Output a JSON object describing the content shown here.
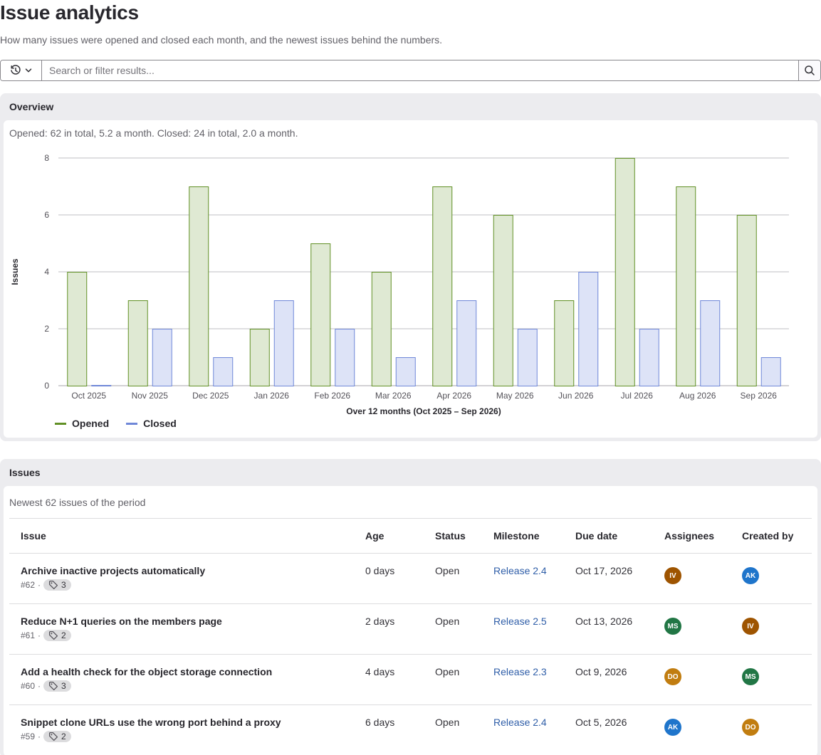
{
  "page": {
    "title": "Issue analytics",
    "description": "How many issues were opened and closed each month, and the newest issues behind the numbers."
  },
  "filter": {
    "placeholder": "Search or filter results...",
    "history_icon": "history-icon",
    "search_icon": "search-icon"
  },
  "overview": {
    "heading": "Overview",
    "summary": "Opened: 62 in total, 5.2 a month. Closed: 24 in total, 2.0 a month."
  },
  "chart_data": {
    "type": "bar",
    "categories": [
      "Oct 2025",
      "Nov 2025",
      "Dec 2025",
      "Jan 2026",
      "Feb 2026",
      "Mar 2026",
      "Apr 2026",
      "May 2026",
      "Jun 2026",
      "Jul 2026",
      "Aug 2026",
      "Sep 2026"
    ],
    "series": [
      {
        "name": "Opened",
        "values": [
          4,
          3,
          7,
          2,
          5,
          4,
          7,
          6,
          3,
          8,
          7,
          6
        ],
        "fill": "#dfe9d3",
        "stroke": "#619025"
      },
      {
        "name": "Closed",
        "values": [
          0,
          2,
          1,
          3,
          2,
          1,
          3,
          2,
          4,
          2,
          3,
          1
        ],
        "fill": "#dde3f7",
        "stroke": "#6f87d8"
      }
    ],
    "xlabel": "Over 12 months (Oct 2025 – Sep 2026)",
    "ylabel": "Issues",
    "ylim": [
      0,
      8
    ],
    "yticks": [
      0,
      2,
      4,
      6,
      8
    ],
    "grid": true,
    "legend_position": "bottom-left"
  },
  "issues": {
    "heading": "Issues",
    "caption": "Newest 62 issues of the period",
    "columns": [
      "Issue",
      "Age",
      "Status",
      "Milestone",
      "Due date",
      "Assignees",
      "Created by"
    ],
    "rows": [
      {
        "title": "Archive inactive projects automatically",
        "number": "#62",
        "labels": "3",
        "age": "0 days",
        "status": "Open",
        "milestone": "Release 2.4",
        "due": "Oct 17, 2026",
        "assignee": {
          "initials": "IV",
          "color": "#9e5400"
        },
        "creator": {
          "initials": "AK",
          "color": "#1f75cb"
        }
      },
      {
        "title": "Reduce N+1 queries on the members page",
        "number": "#61",
        "labels": "2",
        "age": "2 days",
        "status": "Open",
        "milestone": "Release 2.5",
        "due": "Oct 13, 2026",
        "assignee": {
          "initials": "MS",
          "color": "#217645"
        },
        "creator": {
          "initials": "IV",
          "color": "#9e5400"
        }
      },
      {
        "title": "Add a health check for the object storage connection",
        "number": "#60",
        "labels": "3",
        "age": "4 days",
        "status": "Open",
        "milestone": "Release 2.3",
        "due": "Oct 9, 2026",
        "assignee": {
          "initials": "DO",
          "color": "#c17d10"
        },
        "creator": {
          "initials": "MS",
          "color": "#217645"
        }
      },
      {
        "title": "Snippet clone URLs use the wrong port behind a proxy",
        "number": "#59",
        "labels": "2",
        "age": "6 days",
        "status": "Open",
        "milestone": "Release 2.4",
        "due": "Oct 5, 2026",
        "assignee": {
          "initials": "AK",
          "color": "#1f75cb"
        },
        "creator": {
          "initials": "DO",
          "color": "#c17d10"
        }
      }
    ]
  }
}
